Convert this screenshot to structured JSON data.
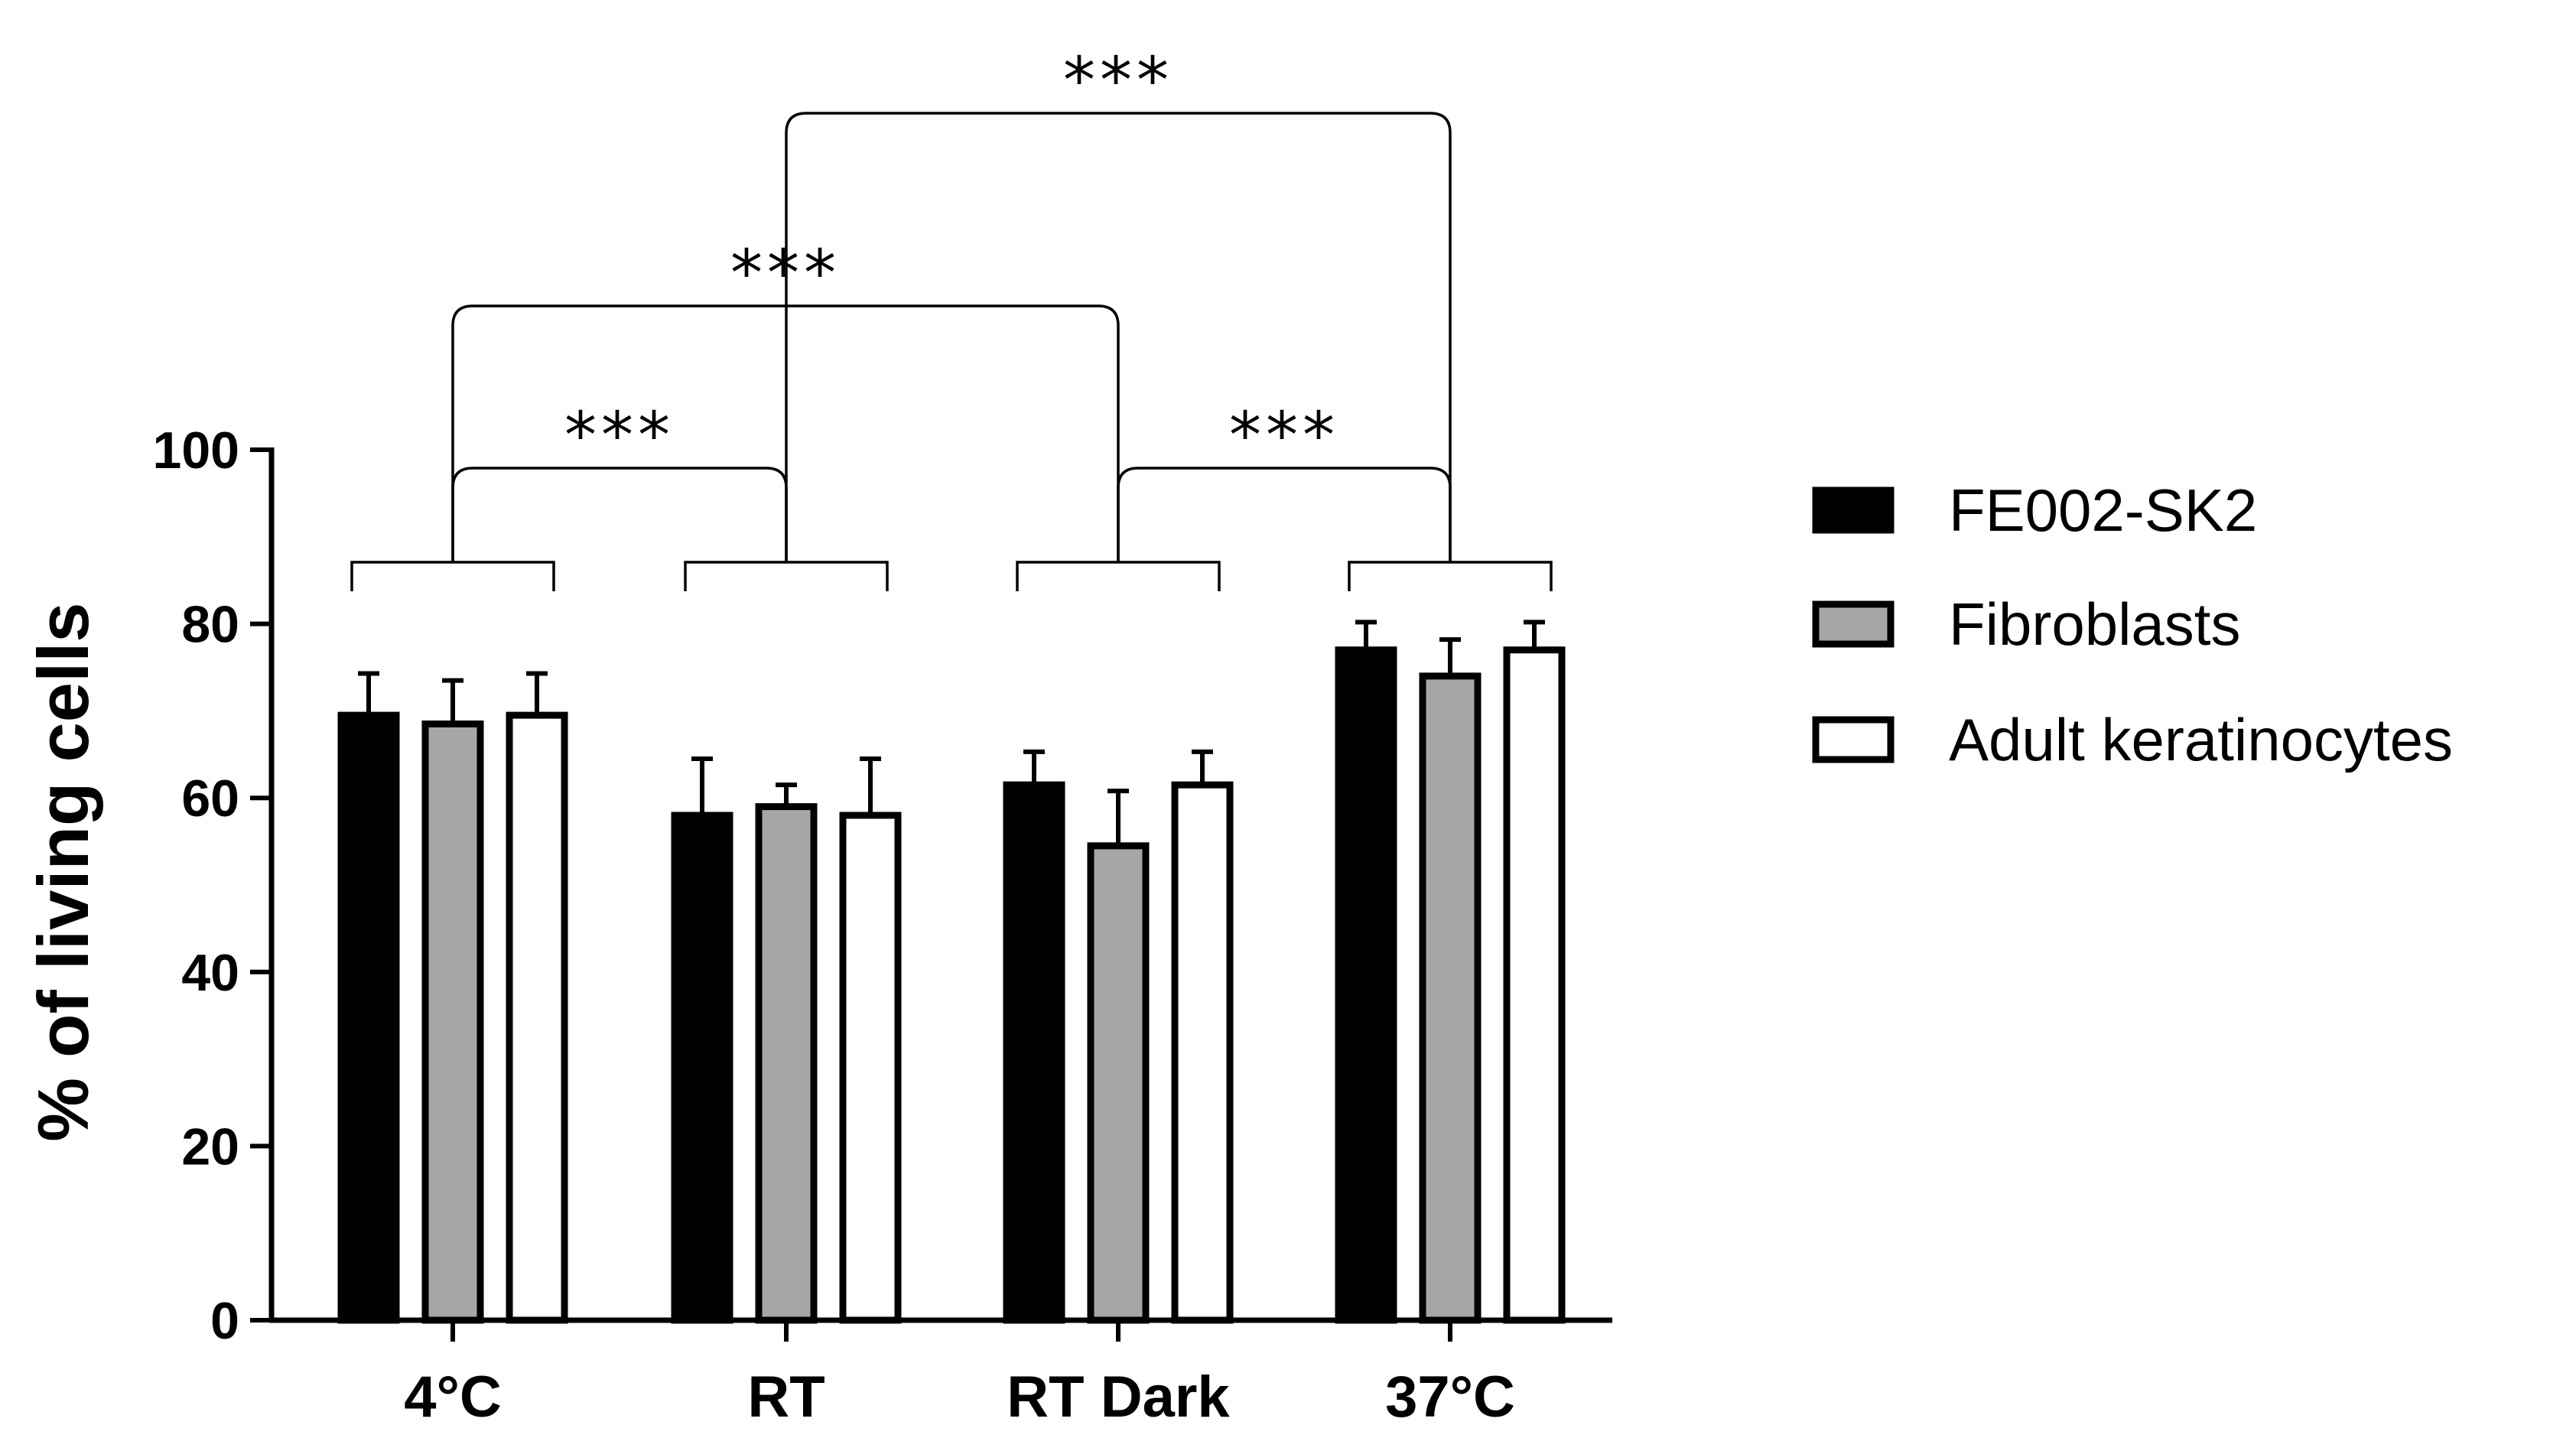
{
  "chart_data": {
    "type": "bar",
    "title": "",
    "xlabel": "",
    "ylabel": "% of living cells",
    "ylim": [
      0,
      100
    ],
    "yticks": [
      0,
      20,
      40,
      60,
      80,
      100
    ],
    "categories": [
      "4°C",
      "RT",
      "RT Dark",
      "37°C"
    ],
    "series": [
      {
        "name": "FE002-SK2",
        "color": "#000000",
        "values": [
          69.5,
          58,
          61.5,
          77
        ],
        "errors": [
          4.8,
          6.5,
          3.8,
          3.2
        ]
      },
      {
        "name": "Fibroblasts",
        "color": "#a6a6a6",
        "values": [
          68.5,
          59,
          54.5,
          74
        ],
        "errors": [
          5,
          2.5,
          6.3,
          4.2
        ]
      },
      {
        "name": "Adult keratinocytes",
        "color": "#ffffff",
        "values": [
          69.5,
          58,
          61.5,
          77
        ],
        "errors": [
          4.8,
          6.5,
          3.8,
          3.2
        ]
      }
    ],
    "legend_position": "right",
    "grid": false,
    "significance": [
      {
        "from": "4°C",
        "to": "RT",
        "label": "***"
      },
      {
        "from": "RT Dark",
        "to": "37°C",
        "label": "***"
      },
      {
        "from": "4°C",
        "to": "RT Dark",
        "label": "***"
      },
      {
        "from": "RT",
        "to": "37°C",
        "label": "***"
      }
    ]
  }
}
